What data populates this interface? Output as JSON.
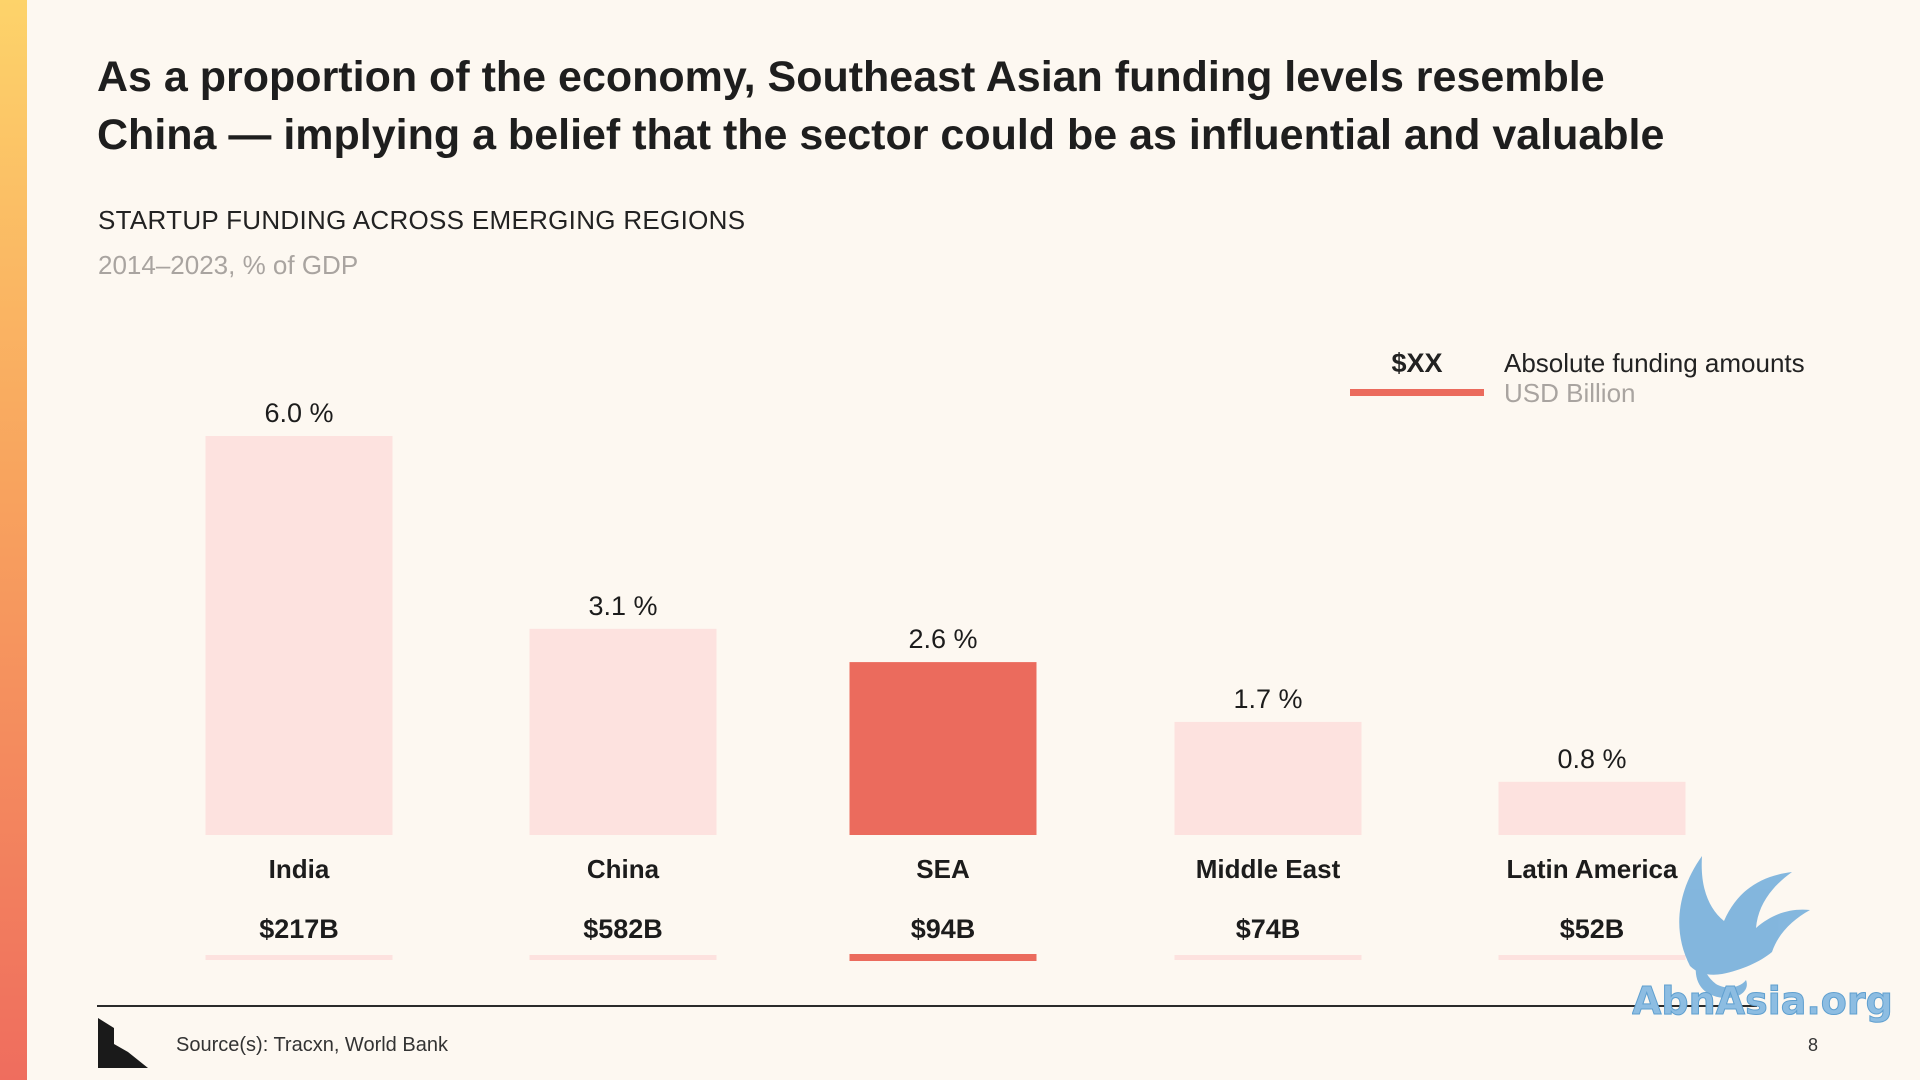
{
  "slide": {
    "headline_line1": "As a proportion of the economy, Southeast Asian funding levels resemble",
    "headline_line2": "China — implying a belief that the sector could be as influential and valuable",
    "source": "Source(s): Tracxn, World Bank",
    "page_number": "8",
    "watermark": "AbnAsia.org",
    "logo_icon": "stepped-corner-logo-icon"
  },
  "legend": {
    "sample_value": "$XX",
    "label": "Absolute funding amounts",
    "unit": "USD Billion"
  },
  "colors": {
    "highlight": "#eb6b5d",
    "muted": "#fde2df",
    "background": "#fdf8f1",
    "accent_gradient": [
      "#fdd36a",
      "#ef6d5e"
    ]
  },
  "chart_data": {
    "type": "bar",
    "title": "STARTUP FUNDING ACROSS EMERGING REGIONS",
    "subtitle": "2014–2023, % of GDP",
    "xlabel": "",
    "ylabel": "",
    "ylim": [
      0,
      6
    ],
    "grid": false,
    "legend_position": "top-right",
    "highlight_category": "SEA",
    "categories": [
      "India",
      "China",
      "SEA",
      "Middle East",
      "Latin America"
    ],
    "values": [
      6.0,
      3.1,
      2.6,
      1.7,
      0.8
    ],
    "value_labels": [
      "6.0 %",
      "3.1 %",
      "2.6 %",
      "1.7 %",
      "0.8 %"
    ],
    "absolute_funding_labels": [
      "$217B",
      "$582B",
      "$94B",
      "$74B",
      "$52B"
    ]
  }
}
